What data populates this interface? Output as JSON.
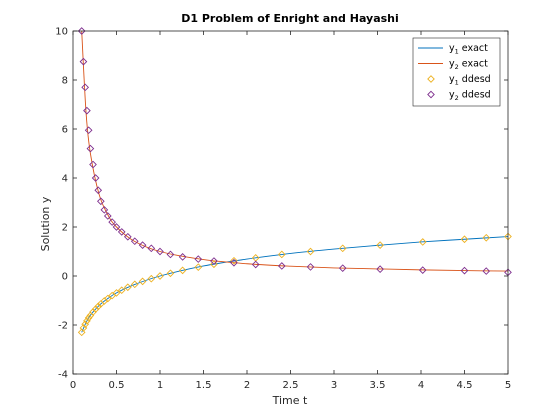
{
  "chart_data": {
    "type": "line",
    "title": "D1 Problem of Enright and Hayashi",
    "xlabel": "Time t",
    "ylabel": "Solution y",
    "xlim": [
      0,
      5
    ],
    "ylim": [
      -4,
      10
    ],
    "xticks": [
      0,
      0.5,
      1,
      1.5,
      2,
      2.5,
      3,
      3.5,
      4,
      4.5,
      5
    ],
    "xtick_labels": [
      "0",
      "0.5",
      "1",
      "1.5",
      "2",
      "2.5",
      "3",
      "3.5",
      "4",
      "4.5",
      "5"
    ],
    "yticks": [
      -4,
      -2,
      0,
      2,
      4,
      6,
      8,
      10
    ],
    "ytick_labels": [
      "-4",
      "-2",
      "0",
      "2",
      "4",
      "6",
      "8",
      "10"
    ],
    "grid": false,
    "legend_position": "top-right",
    "series": [
      {
        "name": "y1 exact",
        "legend_base": "y",
        "legend_sub": "1",
        "legend_rest": " exact",
        "kind": "line",
        "color": "#0072BD",
        "x": [
          0.1,
          0.15,
          0.2,
          0.3,
          0.4,
          0.5,
          0.7,
          1.0,
          1.5,
          2.0,
          2.5,
          3.0,
          3.5,
          4.0,
          4.5,
          5.0
        ],
        "y": [
          -2.3,
          -1.9,
          -1.6,
          -1.2,
          -0.92,
          -0.69,
          -0.36,
          0.0,
          0.41,
          0.69,
          0.92,
          1.1,
          1.25,
          1.39,
          1.5,
          1.61
        ]
      },
      {
        "name": "y2 exact",
        "legend_base": "y",
        "legend_sub": "2",
        "legend_rest": " exact",
        "kind": "line",
        "color": "#D95319",
        "x": [
          0.1,
          0.15,
          0.2,
          0.3,
          0.4,
          0.5,
          0.7,
          1.0,
          1.5,
          2.0,
          2.5,
          3.0,
          3.5,
          4.0,
          4.5,
          5.0
        ],
        "y": [
          10.0,
          6.67,
          5.0,
          3.33,
          2.5,
          2.0,
          1.43,
          1.0,
          0.67,
          0.5,
          0.4,
          0.33,
          0.29,
          0.25,
          0.22,
          0.2
        ]
      },
      {
        "name": "y1 ddesd",
        "legend_base": "y",
        "legend_sub": "1",
        "legend_rest": " ddesd",
        "kind": "marker",
        "color": "#EDB120",
        "x": [
          0.1,
          0.12,
          0.14,
          0.16,
          0.18,
          0.2,
          0.23,
          0.26,
          0.29,
          0.32,
          0.36,
          0.4,
          0.45,
          0.5,
          0.56,
          0.63,
          0.71,
          0.8,
          0.9,
          1.0,
          1.12,
          1.26,
          1.44,
          1.62,
          1.85,
          2.1,
          2.4,
          2.73,
          3.1,
          3.53,
          4.02,
          4.5,
          4.75,
          5.0
        ],
        "y": [
          -2.3,
          -2.12,
          -1.97,
          -1.83,
          -1.71,
          -1.61,
          -1.47,
          -1.35,
          -1.24,
          -1.14,
          -1.02,
          -0.92,
          -0.8,
          -0.69,
          -0.58,
          -0.46,
          -0.34,
          -0.22,
          -0.11,
          0.0,
          0.11,
          0.23,
          0.36,
          0.48,
          0.62,
          0.74,
          0.88,
          1.0,
          1.13,
          1.26,
          1.39,
          1.5,
          1.56,
          1.61
        ]
      },
      {
        "name": "y2 ddesd",
        "legend_base": "y",
        "legend_sub": "2",
        "legend_rest": " ddesd",
        "kind": "marker",
        "color": "#7E2F8E",
        "x": [
          0.1,
          0.12,
          0.14,
          0.16,
          0.18,
          0.2,
          0.23,
          0.26,
          0.29,
          0.32,
          0.36,
          0.4,
          0.45,
          0.5,
          0.56,
          0.63,
          0.71,
          0.8,
          0.9,
          1.0,
          1.12,
          1.26,
          1.44,
          1.62,
          1.85,
          2.1,
          2.4,
          2.73,
          3.1,
          3.53,
          4.02,
          4.5,
          4.75,
          5.0
        ],
        "y": [
          10.0,
          8.75,
          7.7,
          6.75,
          5.95,
          5.2,
          4.55,
          4.0,
          3.5,
          3.05,
          2.7,
          2.45,
          2.2,
          2.0,
          1.8,
          1.6,
          1.42,
          1.26,
          1.13,
          1.0,
          0.88,
          0.78,
          0.69,
          0.61,
          0.54,
          0.47,
          0.41,
          0.37,
          0.32,
          0.28,
          0.24,
          0.22,
          0.2,
          0.15
        ]
      }
    ]
  }
}
